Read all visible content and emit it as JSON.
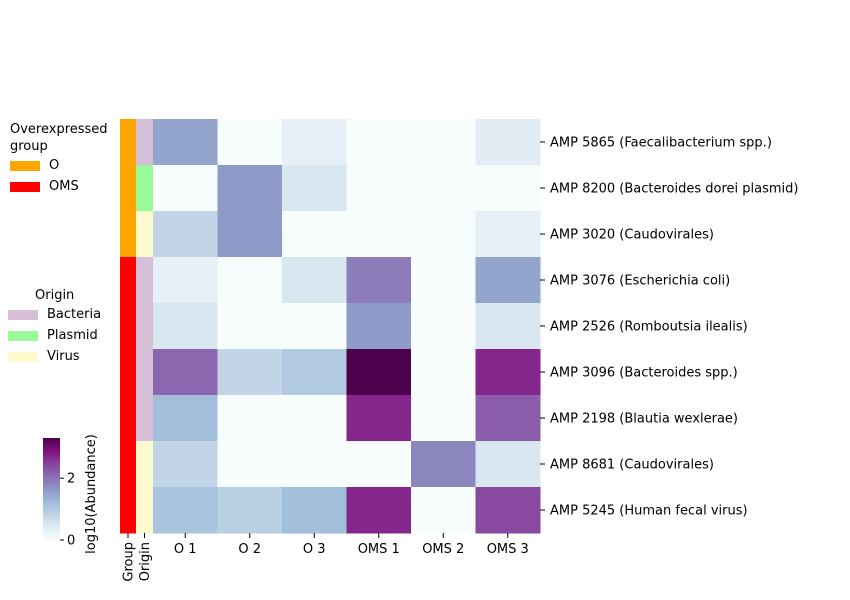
{
  "chart_data": {
    "type": "heatmap",
    "columns": [
      "O 1",
      "O 2",
      "O 3",
      "OMS 1",
      "OMS 2",
      "OMS 3"
    ],
    "rows": [
      "AMP 5865 (Faecalibacterium spp.)",
      "AMP 8200 (Bacteroides dorei plasmid)",
      "AMP 3020 (Caudovirales)",
      "AMP 3076 (Escherichia coli)",
      "AMP 2526 (Romboutsia ilealis)",
      "AMP 3096 (Bacteroides spp.)",
      "AMP 2198 (Blautia wexlerae)",
      "AMP 8681 (Caudovirales)",
      "AMP 5245 (Human fecal virus)"
    ],
    "values": [
      [
        1.5,
        0.0,
        0.3,
        0.0,
        0.0,
        0.4
      ],
      [
        0.0,
        1.6,
        0.5,
        0.0,
        0.0,
        0.0
      ],
      [
        0.8,
        1.6,
        0.0,
        0.0,
        0.0,
        0.3
      ],
      [
        0.3,
        0.0,
        0.5,
        1.9,
        0.0,
        1.5
      ],
      [
        0.5,
        0.0,
        0.0,
        1.6,
        0.0,
        0.5
      ],
      [
        2.1,
        0.8,
        1.0,
        3.3,
        0.0,
        2.7
      ],
      [
        1.2,
        0.0,
        0.0,
        2.7,
        0.0,
        2.2
      ],
      [
        0.8,
        0.0,
        0.0,
        0.0,
        1.8,
        0.5
      ],
      [
        1.1,
        0.9,
        1.2,
        2.7,
        0.0,
        2.4
      ]
    ],
    "row_groups": [
      "O",
      "O",
      "O",
      "OMS",
      "OMS",
      "OMS",
      "OMS",
      "OMS",
      "OMS"
    ],
    "row_origins": [
      "Bacteria",
      "Plasmid",
      "Virus",
      "Bacteria",
      "Bacteria",
      "Bacteria",
      "Bacteria",
      "Virus",
      "Virus"
    ],
    "annotation_columns": [
      "Group",
      "Origin"
    ],
    "colorbar": {
      "label": "log10(Abundance)",
      "ticks": [
        "0",
        "2"
      ],
      "range": [
        0,
        3.3
      ],
      "colormap": "BuPu"
    }
  },
  "legends": {
    "group": {
      "title_line1": "Overexpressed",
      "title_line2": "group",
      "items": [
        {
          "label": "O",
          "color": "#ffa500"
        },
        {
          "label": "OMS",
          "color": "#ff0000"
        }
      ]
    },
    "origin": {
      "title": "Origin",
      "items": [
        {
          "label": "Bacteria",
          "color": "#d8bfd8"
        },
        {
          "label": "Plasmid",
          "color": "#98fb98"
        },
        {
          "label": "Virus",
          "color": "#fffacd"
        }
      ]
    }
  }
}
